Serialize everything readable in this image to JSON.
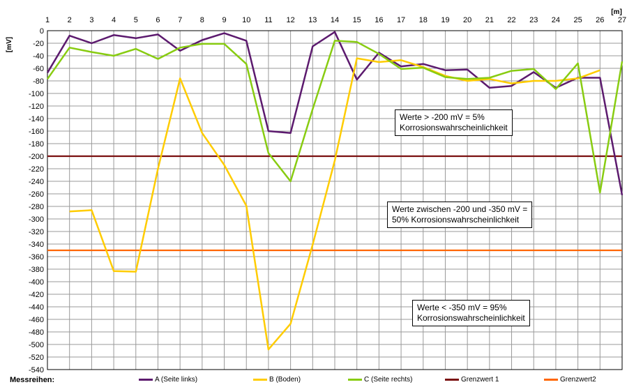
{
  "chart_data": {
    "type": "line",
    "x_unit": "[m]",
    "y_unit": "[mV]",
    "x": [
      1,
      2,
      3,
      4,
      5,
      6,
      7,
      8,
      9,
      10,
      11,
      12,
      13,
      14,
      15,
      16,
      17,
      18,
      19,
      20,
      21,
      22,
      23,
      24,
      25,
      26,
      27
    ],
    "xlim": [
      1,
      27
    ],
    "ylim": [
      -540,
      0
    ],
    "y_ticks": [
      0,
      -20,
      -40,
      -60,
      -80,
      -100,
      -120,
      -140,
      -160,
      -180,
      -200,
      -220,
      -240,
      -260,
      -280,
      -300,
      -320,
      -340,
      -360,
      -380,
      -400,
      -420,
      -440,
      -460,
      -480,
      -500,
      -520,
      -540
    ],
    "grid": true,
    "legend_title": "Messreihen:",
    "legend_position": "bottom",
    "series": [
      {
        "name": "A (Seite links)",
        "color": "#5c1a6e",
        "values": [
          -67,
          -8,
          -20,
          -7,
          -12,
          -6,
          -32,
          -15,
          -4,
          -16,
          -160,
          -163,
          -25,
          -2,
          -78,
          -35,
          -57,
          -53,
          -63,
          -62,
          -91,
          -88,
          -66,
          -91,
          -75,
          -75,
          -262
        ]
      },
      {
        "name": "B (Boden)",
        "color": "#ffcc00",
        "values": [
          null,
          -288,
          -286,
          -383,
          -384,
          -220,
          -76,
          -163,
          -214,
          -279,
          -508,
          -467,
          -341,
          -207,
          -44,
          -50,
          -47,
          -58,
          -72,
          -80,
          -77,
          -84,
          -80,
          -80,
          -76,
          -63,
          null
        ]
      },
      {
        "name": "C (Seite rechts)",
        "color": "#88cc11",
        "values": [
          -77,
          -27,
          -34,
          -40,
          -29,
          -45,
          -27,
          -21,
          -21,
          -53,
          -195,
          -240,
          -125,
          -16,
          -18,
          -37,
          -61,
          -59,
          -74,
          -77,
          -75,
          -64,
          -61,
          -93,
          -52,
          -258,
          -49
        ]
      },
      {
        "name": "Grenzwert 1",
        "color": "#7a1010",
        "constant": -200
      },
      {
        "name": "Grenzwert2",
        "color": "#ff6600",
        "constant": -350
      }
    ],
    "annotations": [
      {
        "lines": [
          "Werte > -200 mV = 5%",
          "Korrosionswahrscheinlichkeit"
        ]
      },
      {
        "lines": [
          "Werte zwischen -200 und -350 mV =",
          "50% Korrosionswahrscheinlichkeit"
        ]
      },
      {
        "lines": [
          "Werte < -350 mV = 95%",
          "Korrosionswahrscheinlichkeit"
        ]
      }
    ]
  }
}
